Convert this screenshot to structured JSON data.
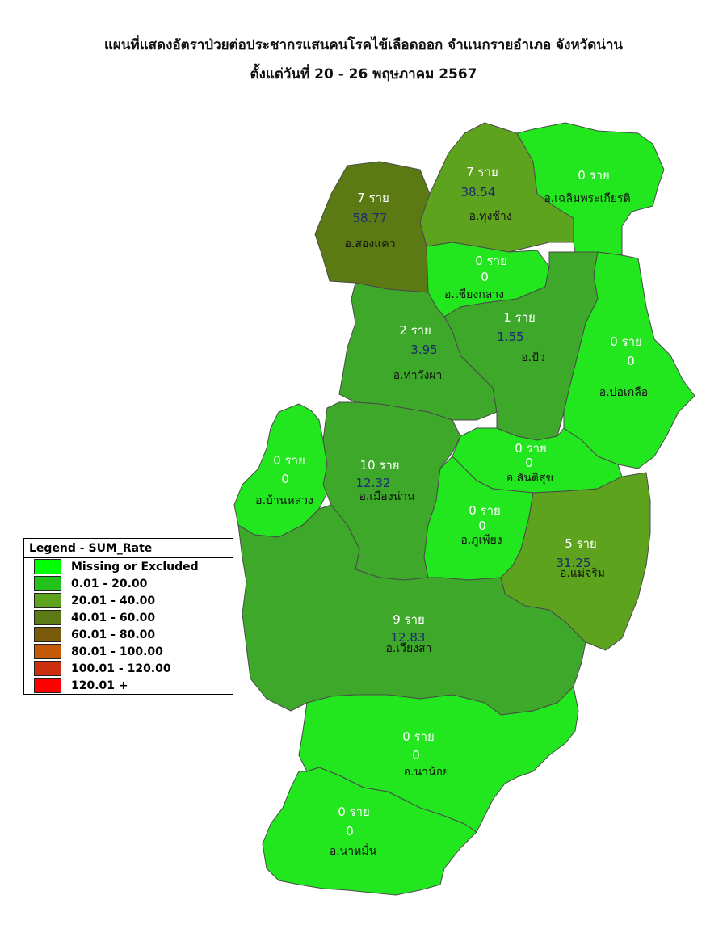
{
  "title": {
    "line1": "แผนที่แสดงอัตราป่วยต่อประชากรแสนคนโรคไข้เลือดออก จำแนกรายอำเภอ จังหวัดน่าน",
    "line2": "ตั้งแต่วันที่ 20 - 26 พฤษภาคม 2567"
  },
  "legend": {
    "title": "Legend - SUM_Rate",
    "items": [
      {
        "label": "Missing or Excluded",
        "color": "#00ff00"
      },
      {
        "label": "0.01 - 20.00",
        "color": "#22c41c"
      },
      {
        "label": "20.01 - 40.00",
        "color": "#5ea31e"
      },
      {
        "label": "40.01 - 60.00",
        "color": "#5c7a14"
      },
      {
        "label": "60.01 - 80.00",
        "color": "#7a5a0c"
      },
      {
        "label": "80.01 - 100.00",
        "color": "#c25a08"
      },
      {
        "label": "100.01 - 120.00",
        "color": "#cc2e10"
      },
      {
        "label": "120.01 +",
        "color": "#ff0000"
      }
    ]
  },
  "districts": [
    {
      "name": "อ.สองแคว",
      "cases": "7 ราย",
      "rate": "58.77",
      "color": "#5c7a14"
    },
    {
      "name": "อ.ทุ่งช้าง",
      "cases": "7 ราย",
      "rate": "38.54",
      "color": "#5ea31e"
    },
    {
      "name": "อ.เฉลิมพระเกียรติ",
      "cases": "0 ราย",
      "rate": "",
      "color": "#22e61e"
    },
    {
      "name": "อ.เชียงกลาง",
      "cases": "0 ราย",
      "rate": "0",
      "color": "#22e61e"
    },
    {
      "name": "อ.ท่าวังผา",
      "cases": "2 ราย",
      "rate": "3.95",
      "color": "#3ea82a"
    },
    {
      "name": "อ.ปัว",
      "cases": "1 ราย",
      "rate": "1.55",
      "color": "#3ea82a"
    },
    {
      "name": "อ.บ่อเกลือ",
      "cases": "0 ราย",
      "rate": "0",
      "color": "#22e61e"
    },
    {
      "name": "อ.บ้านหลวง",
      "cases": "0 ราย",
      "rate": "0",
      "color": "#22e61e"
    },
    {
      "name": "อ.เมืองน่าน",
      "cases": "10 ราย",
      "rate": "12.32",
      "color": "#3ea82a"
    },
    {
      "name": "อ.สันติสุข",
      "cases": "0 ราย",
      "rate": "0",
      "color": "#22e61e"
    },
    {
      "name": "อ.ภูเพียง",
      "cases": "0 ราย",
      "rate": "0",
      "color": "#22e61e"
    },
    {
      "name": "อ.แม่จริม",
      "cases": "5 ราย",
      "rate": "31.25",
      "color": "#5ea31e"
    },
    {
      "name": "อ.เวียงสา",
      "cases": "9 ราย",
      "rate": "12.83",
      "color": "#3ea82a"
    },
    {
      "name": "อ.นาน้อย",
      "cases": "0 ราย",
      "rate": "0",
      "color": "#22e61e"
    },
    {
      "name": "อ.นาหมื่น",
      "cases": "0 ราย",
      "rate": "0",
      "color": "#22e61e"
    }
  ]
}
